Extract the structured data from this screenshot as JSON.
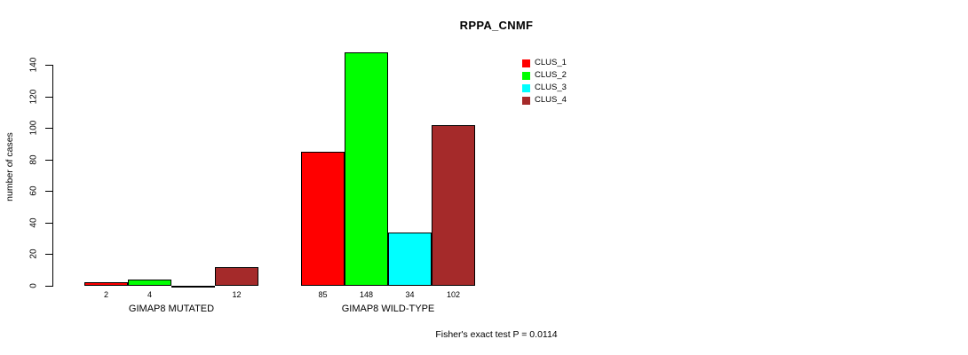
{
  "chart_data": {
    "type": "bar",
    "title": "RPPA_CNMF",
    "xlabel": "",
    "ylabel": "number of cases",
    "ylim": [
      0,
      148
    ],
    "y_ticks": [
      0,
      20,
      40,
      60,
      80,
      100,
      120,
      140
    ],
    "grid": false,
    "legend_position": "top-right",
    "legend": [
      {
        "label": "CLUS_1",
        "color": "#FF0000"
      },
      {
        "label": "CLUS_2",
        "color": "#00FF00"
      },
      {
        "label": "CLUS_3",
        "color": "#00FFFF"
      },
      {
        "label": "CLUS_4",
        "color": "#A52A2A"
      }
    ],
    "groups": [
      {
        "label": "GIMAP8 MUTATED",
        "values": [
          2,
          4,
          0,
          12
        ],
        "bar_labels": [
          "2",
          "4",
          "",
          "12"
        ]
      },
      {
        "label": "GIMAP8 WILD-TYPE",
        "values": [
          85,
          148,
          34,
          102
        ],
        "bar_labels": [
          "85",
          "148",
          "34",
          "102"
        ]
      }
    ],
    "footnote": "Fisher's exact test P = 0.0114"
  },
  "colors": {
    "background": "#FFFFFF",
    "axis": "#000000",
    "bar_border": "#000000",
    "text": "#000000"
  }
}
